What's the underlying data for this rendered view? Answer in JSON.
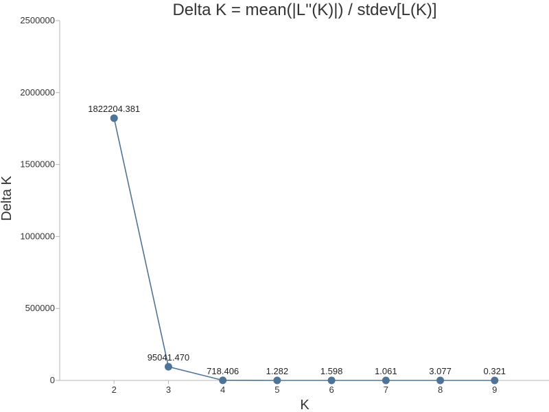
{
  "colors": {
    "series": "#4e7396",
    "axis": "#b5b5b5",
    "text": "#333333"
  },
  "chart_data": {
    "type": "line",
    "title": "Delta K = mean(|L''(K)|) / stdev[L(K)]",
    "xlabel": "K",
    "ylabel": "Delta K",
    "x": [
      2,
      3,
      4,
      5,
      6,
      7,
      8,
      9
    ],
    "x_ticks": [
      "2",
      "3",
      "4",
      "5",
      "6",
      "7",
      "8",
      "9"
    ],
    "xlim": [
      1,
      10
    ],
    "ylim": [
      0,
      2500000
    ],
    "y_ticks": [
      "0",
      "500000",
      "1000000",
      "1500000",
      "2000000",
      "2500000"
    ],
    "y_tick_values": [
      0,
      500000,
      1000000,
      1500000,
      2000000,
      2500000
    ],
    "grid": false,
    "legend": "none",
    "series": [
      {
        "values": [
          1822204.381,
          95041.47,
          718.406,
          1.282,
          1.598,
          1.061,
          3.077,
          0.321
        ],
        "data_labels": [
          "1822204.381",
          "95041.470",
          "718.406",
          "1.282",
          "1.598",
          "1.061",
          "3.077",
          "0.321"
        ]
      }
    ]
  }
}
